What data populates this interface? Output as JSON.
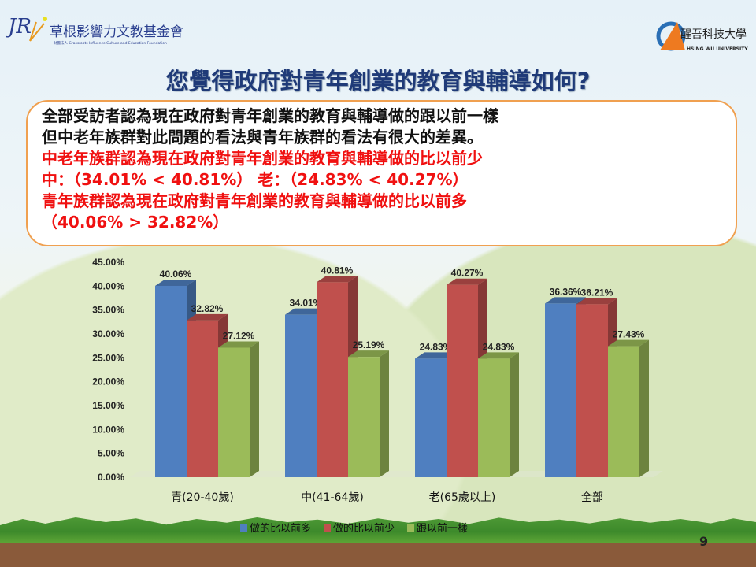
{
  "header": {
    "left_logo_text": "草根影響力文教基金會",
    "left_logo_subtext": "財團法人 Grassroots Influence Culture and Education Foundation",
    "right_logo_text": "醒吾科技大學",
    "right_logo_subtext": "HSING WU UNIVERSITY",
    "title": "您覺得政府對青年創業的教育與輔導如何?"
  },
  "summary": {
    "lines": [
      {
        "text": "全部受訪者認為現在政府對青年創業的教育與輔導做的跟以前一樣",
        "color": "#111111"
      },
      {
        "text": "但中老年族群對此問題的看法與青年族群的看法有很大的差異。",
        "color": "#111111"
      },
      {
        "text": "中老年族群認為現在政府對青年創業的教育與輔導做的比以前少",
        "color": "#f01010"
      },
      {
        "text": "中：（34.01% < 40.81%） 老：（24.83% < 40.27%）",
        "color": "#f01010"
      },
      {
        "text": "青年族群認為現在政府對青年創業的教育與輔導做的比以前多",
        "color": "#f01010"
      },
      {
        "text": "（40.06% > 32.82%）",
        "color": "#f01010"
      }
    ]
  },
  "chart_data": {
    "type": "bar",
    "style": "3d-clustered-column",
    "categories": [
      "青(20-40歲)",
      "中(41-64歲)",
      "老(65歲以上)",
      "全部"
    ],
    "series": [
      {
        "name": "做的比以前多",
        "color": "#4f7fc0",
        "values": [
          40.06,
          34.01,
          24.83,
          36.36
        ]
      },
      {
        "name": "做的比以前少",
        "color": "#c0504d",
        "values": [
          32.82,
          40.81,
          40.27,
          36.21
        ]
      },
      {
        "name": "跟以前一樣",
        "color": "#9bbb59",
        "values": [
          27.12,
          25.19,
          24.83,
          27.43
        ]
      }
    ],
    "data_labels": [
      [
        "40.06%",
        "34.01%",
        "24.83%",
        "36.36%"
      ],
      [
        "32.82%",
        "40.81%",
        "40.27%",
        "36.21%"
      ],
      [
        "27.12%",
        "25.19%",
        "24.83%",
        "27.43%"
      ]
    ],
    "yticks": [
      "0.00%",
      "5.00%",
      "10.00%",
      "15.00%",
      "20.00%",
      "25.00%",
      "30.00%",
      "35.00%",
      "40.00%",
      "45.00%"
    ],
    "ylim": [
      0,
      45
    ],
    "grid": false,
    "legend": "bottom"
  },
  "footer": {
    "page_number": "9"
  }
}
